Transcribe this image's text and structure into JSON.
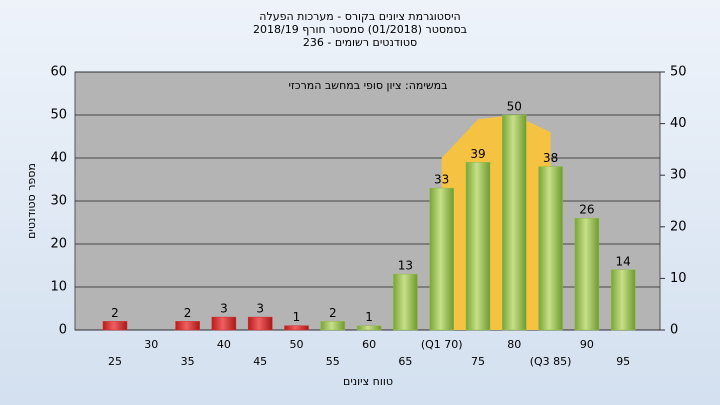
{
  "chart_data": {
    "type": "bar",
    "title": [
      "היסטוגרמת ציונים בקורס - מערכות הפעלה",
      "בסמסטר (01/2018) סמסטר חורף 2018/19",
      "סטודנטים רשומים - 236"
    ],
    "annotation": "במשימה: ציון סופי במחשב המרכזי",
    "y_label": "מספר סטודנטים",
    "x_label": "טווח ציונים",
    "categories": [
      "25",
      "30",
      "35",
      "40",
      "45",
      "50",
      "55",
      "60",
      "65",
      "(Q1 70)",
      "75",
      "80",
      "(Q3 85)",
      "90",
      "95"
    ],
    "values": [
      2,
      null,
      2,
      3,
      3,
      1,
      2,
      1,
      13,
      33,
      39,
      50,
      38,
      26,
      14
    ],
    "colors": [
      "#d42a2a",
      "#d42a2a",
      "#d42a2a",
      "#d42a2a",
      "#d42a2a",
      "#d42a2a",
      "#8fbc45",
      "#8fbc45",
      "#8fbc45",
      "#8fbc45",
      "#8fbc45",
      "#8fbc45",
      "#8fbc45",
      "#8fbc45",
      "#8fbc45"
    ],
    "area": {
      "x": [
        70,
        75,
        80,
        85
      ],
      "values": [
        40,
        49,
        50,
        46
      ],
      "color": "#f5c242"
    },
    "ylim": [
      0,
      60
    ],
    "yticks": [
      0,
      10,
      20,
      30,
      40,
      50,
      60
    ],
    "y2lim": [
      0,
      50
    ],
    "y2ticks": [
      0,
      10,
      20,
      30,
      40,
      50
    ],
    "grid": true
  }
}
